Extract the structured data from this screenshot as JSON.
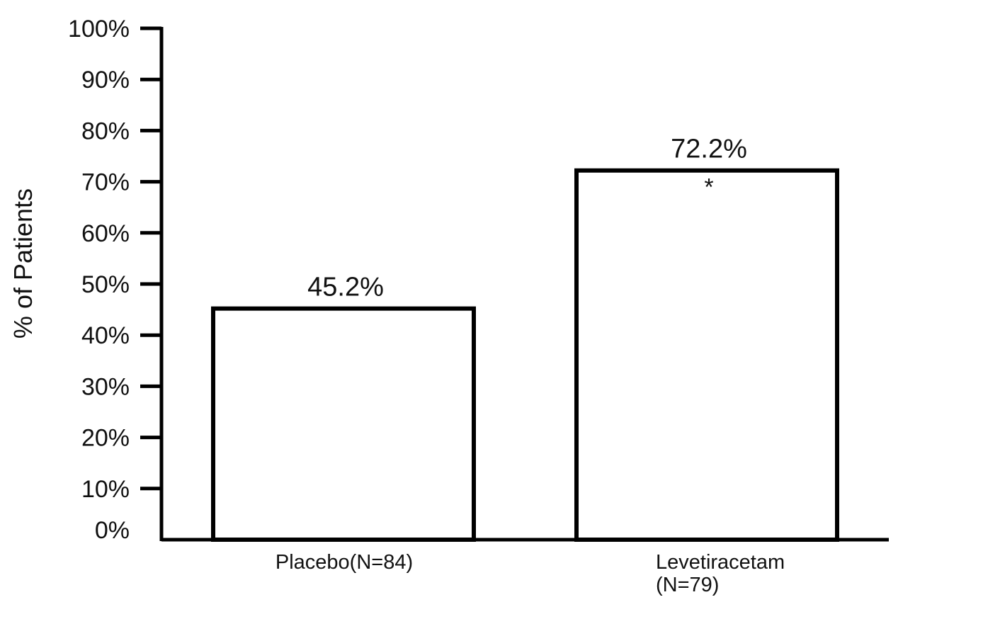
{
  "chart_data": {
    "type": "bar",
    "title": "",
    "xlabel": "",
    "ylabel": "% of Patients",
    "ylim": [
      0,
      100
    ],
    "yticks": [
      0,
      10,
      20,
      30,
      40,
      50,
      60,
      70,
      80,
      90,
      100
    ],
    "ytick_labels": [
      "0%",
      "10%",
      "20%",
      "30%",
      "40%",
      "50%",
      "60%",
      "70%",
      "80%",
      "90%",
      "100%"
    ],
    "categories": [
      [
        "Placebo(N=84)"
      ],
      [
        "Levetiracetam",
        "(N=79)"
      ]
    ],
    "values": [
      45.2,
      72.2
    ],
    "value_labels": [
      "45.2%",
      "72.2%"
    ],
    "annotations": [
      "",
      "*"
    ],
    "grid": false,
    "bar_fill": "#ffffff",
    "bar_stroke": "#000000"
  }
}
